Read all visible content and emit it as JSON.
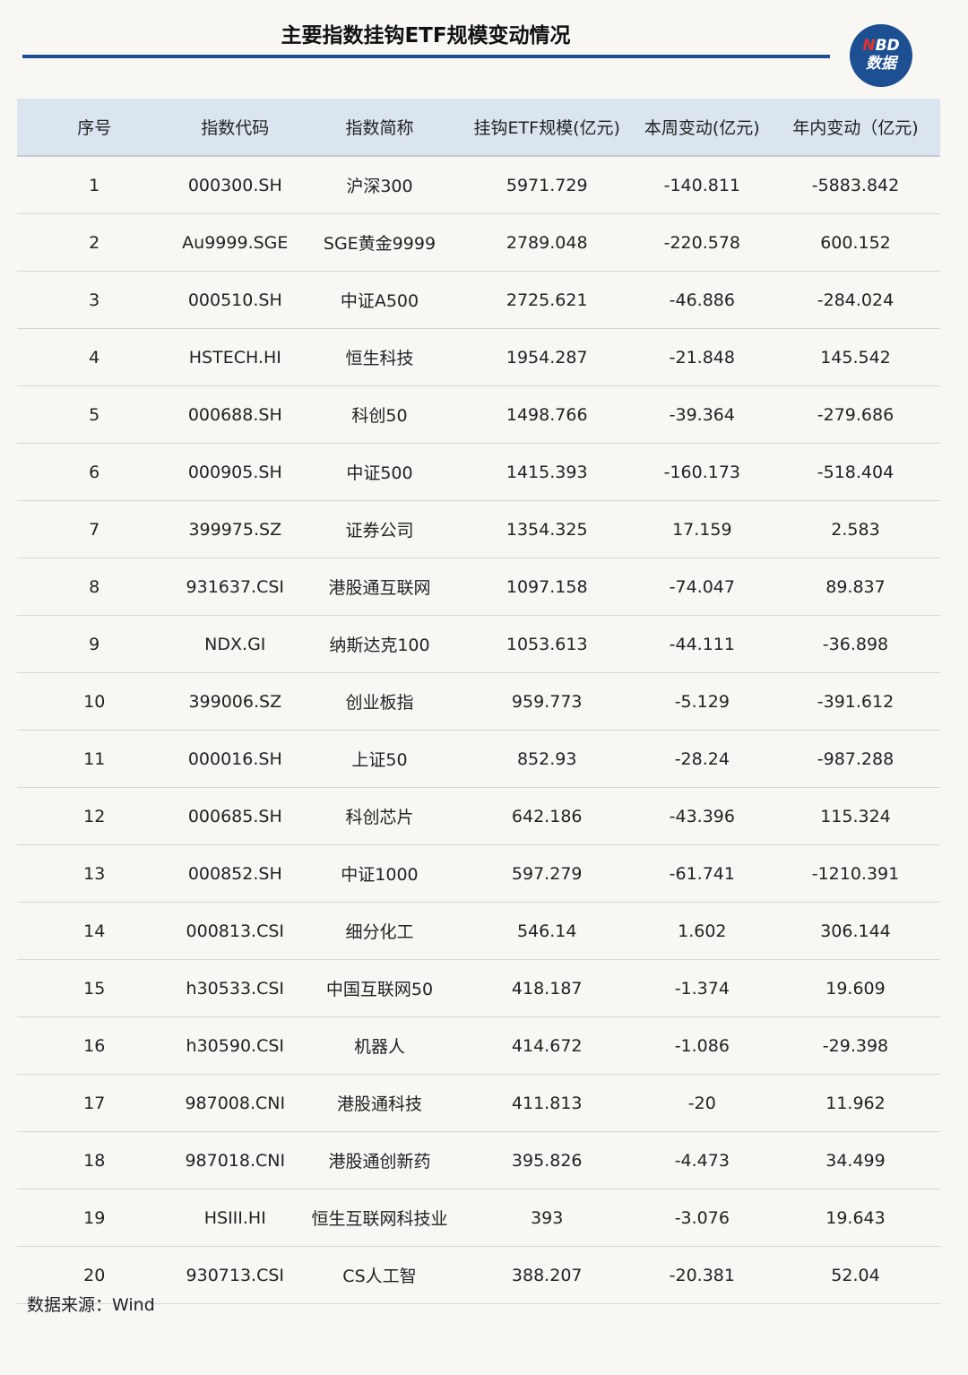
{
  "title": "主要指数挂钩ETF规模变动情况",
  "logo": {
    "line1_accent": "N",
    "line1_rest": "BD",
    "line2": "数据",
    "colors": {
      "bg": "#1d4f93",
      "accent": "#e03030"
    }
  },
  "table": {
    "headers": [
      "序号",
      "指数代码",
      "指数简称",
      "挂钩ETF规模(亿元)",
      "本周变动(亿元)",
      "年内变动（亿元)"
    ],
    "rows": [
      [
        "1",
        "000300.SH",
        "沪深300",
        "5971.729",
        "-140.811",
        "-5883.842"
      ],
      [
        "2",
        "Au9999.SGE",
        "SGE黄金9999",
        "2789.048",
        "-220.578",
        "600.152"
      ],
      [
        "3",
        "000510.SH",
        "中证A500",
        "2725.621",
        "-46.886",
        "-284.024"
      ],
      [
        "4",
        "HSTECH.HI",
        "恒生科技",
        "1954.287",
        "-21.848",
        "145.542"
      ],
      [
        "5",
        "000688.SH",
        "科创50",
        "1498.766",
        "-39.364",
        "-279.686"
      ],
      [
        "6",
        "000905.SH",
        "中证500",
        "1415.393",
        "-160.173",
        "-518.404"
      ],
      [
        "7",
        "399975.SZ",
        "证券公司",
        "1354.325",
        "17.159",
        "2.583"
      ],
      [
        "8",
        "931637.CSI",
        "港股通互联网",
        "1097.158",
        "-74.047",
        "89.837"
      ],
      [
        "9",
        "NDX.GI",
        "纳斯达克100",
        "1053.613",
        "-44.111",
        "-36.898"
      ],
      [
        "10",
        "399006.SZ",
        "创业板指",
        "959.773",
        "-5.129",
        "-391.612"
      ],
      [
        "11",
        "000016.SH",
        "上证50",
        "852.93",
        "-28.24",
        "-987.288"
      ],
      [
        "12",
        "000685.SH",
        "科创芯片",
        "642.186",
        "-43.396",
        "115.324"
      ],
      [
        "13",
        "000852.SH",
        "中证1000",
        "597.279",
        "-61.741",
        "-1210.391"
      ],
      [
        "14",
        "000813.CSI",
        "细分化工",
        "546.14",
        "1.602",
        "306.144"
      ],
      [
        "15",
        "h30533.CSI",
        "中国互联网50",
        "418.187",
        "-1.374",
        "19.609"
      ],
      [
        "16",
        "h30590.CSI",
        "机器人",
        "414.672",
        "-1.086",
        "-29.398"
      ],
      [
        "17",
        "987008.CNI",
        "港股通科技",
        "411.813",
        "-20",
        "11.962"
      ],
      [
        "18",
        "987018.CNI",
        "港股通创新药",
        "395.826",
        "-4.473",
        "34.499"
      ],
      [
        "19",
        "HSIII.HI",
        "恒生互联网科技业",
        "393",
        "-3.076",
        "19.643"
      ],
      [
        "20",
        "930713.CSI",
        "CS人工智",
        "388.207",
        "-20.381",
        "52.04"
      ]
    ]
  },
  "source": "数据来源：Wind"
}
